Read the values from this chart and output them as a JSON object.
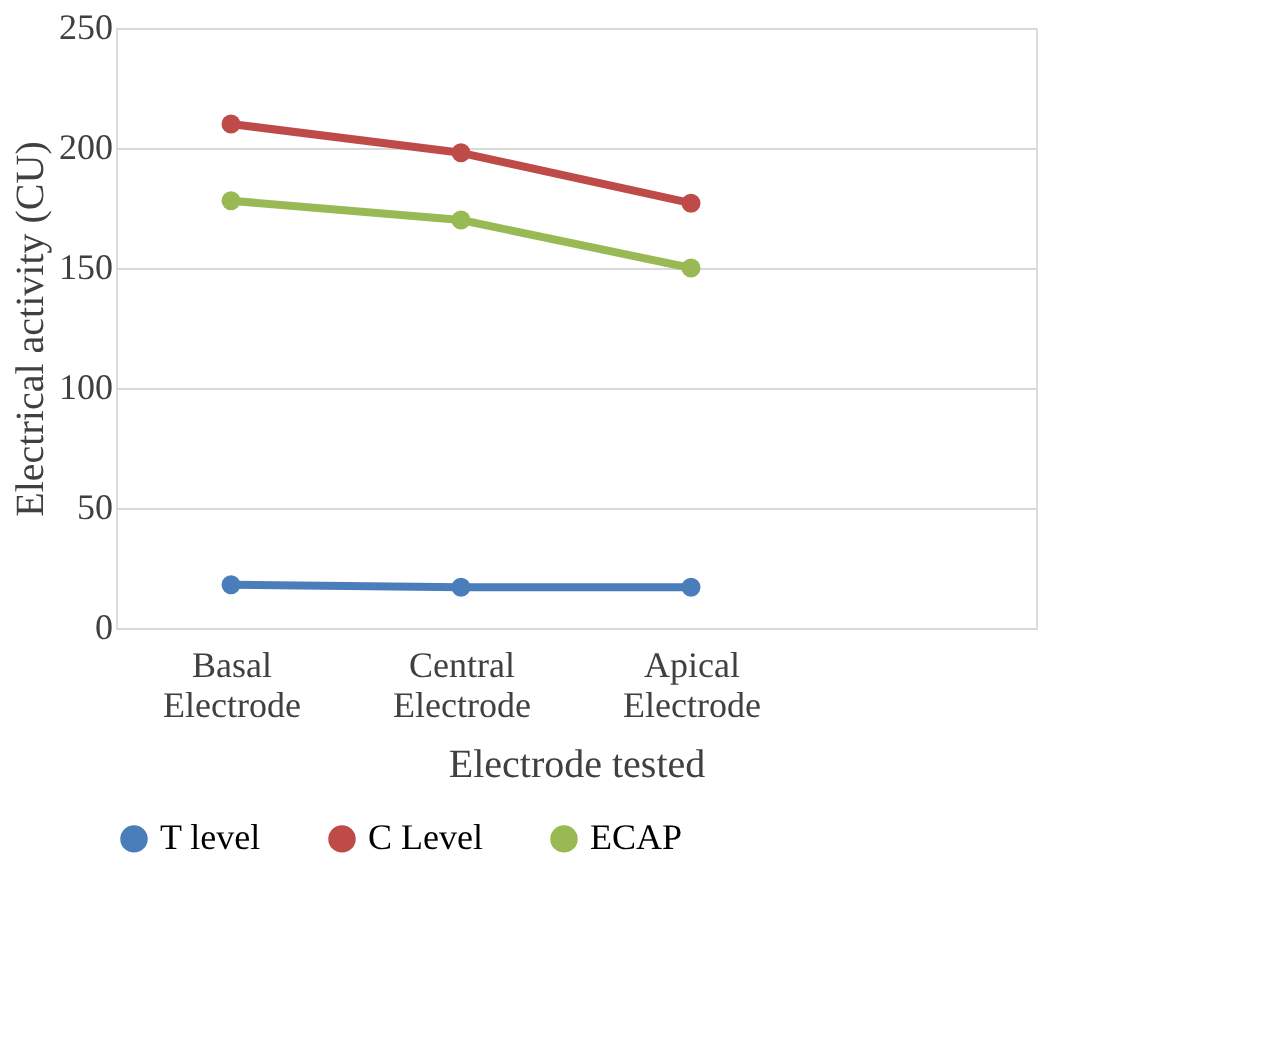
{
  "chart_data": {
    "type": "line",
    "xlabel": "Electrode tested",
    "ylabel": "Electrical activity (CU)",
    "categories": [
      "Basal Electrode",
      "Central Electrode",
      "Apical Electrode",
      null
    ],
    "series": [
      {
        "name": "T level",
        "color": "#4a7ebb",
        "values": [
          18,
          17,
          17,
          null
        ]
      },
      {
        "name": "C Level",
        "color": "#be4b48",
        "values": [
          210,
          198,
          177,
          null
        ]
      },
      {
        "name": "ECAP",
        "color": "#98b954",
        "values": [
          178,
          170,
          150,
          null
        ]
      }
    ],
    "ylim": [
      0,
      250
    ],
    "yticks": [
      0,
      50,
      100,
      150,
      200,
      250
    ],
    "grid": "y",
    "legend": "bottom",
    "marker": "circle"
  }
}
